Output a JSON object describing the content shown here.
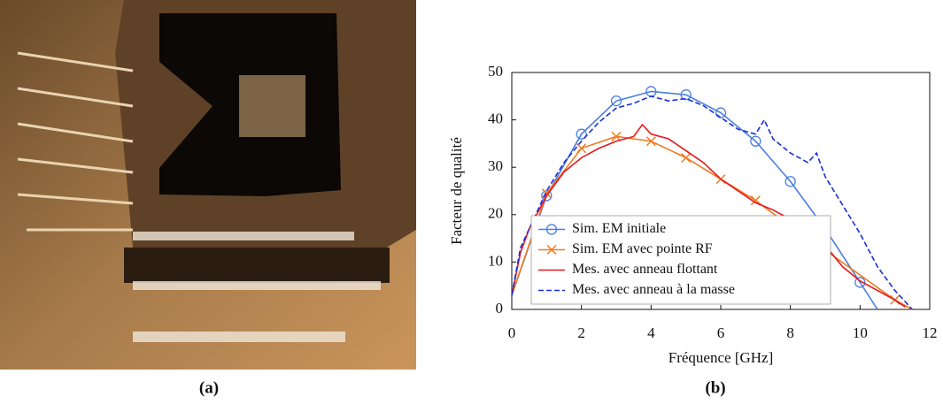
{
  "captions": [
    "(a)",
    "(b)"
  ],
  "chart_data": {
    "type": "line",
    "xlabel": "Fréquence [GHz]",
    "ylabel": "Facteur de qualité",
    "xlim": [
      0,
      12
    ],
    "xticks": [
      0,
      2,
      4,
      6,
      8,
      10,
      12
    ],
    "ylim": [
      0,
      50
    ],
    "yticks": [
      0,
      10,
      20,
      30,
      40,
      50
    ],
    "legend": "lower left",
    "series": [
      {
        "name": "Sim. EM initiale",
        "color": "#4a7fe0",
        "marker": "circle",
        "x": [
          0,
          1,
          2,
          3,
          4,
          5,
          6,
          7,
          8,
          9,
          10,
          10.5
        ],
        "values": [
          3,
          24,
          37,
          44,
          46,
          45.3,
          41.5,
          35.5,
          27,
          17,
          5.7,
          0
        ]
      },
      {
        "name": "Sim. EM avec pointe RF",
        "color": "#f07a20",
        "marker": "x",
        "x": [
          0,
          1,
          2,
          3,
          4,
          5,
          6,
          7,
          8,
          9,
          11,
          11.5
        ],
        "values": [
          3,
          24.5,
          34,
          36.5,
          35.5,
          32,
          27.5,
          23,
          17.5,
          12.5,
          2,
          0
        ]
      },
      {
        "name": "Mes. avec anneau flottant",
        "color": "#e8161b",
        "x": [
          0,
          0.25,
          0.5,
          1,
          1.5,
          2,
          2.5,
          3,
          3.5,
          3.75,
          4,
          4.5,
          5,
          5.5,
          6,
          6.5,
          7,
          7.5,
          8,
          8.5,
          9,
          9.5,
          10,
          10.5,
          11,
          11.3
        ],
        "values": [
          3,
          12,
          17,
          24,
          29,
          32,
          34,
          35.5,
          36.5,
          39,
          37,
          36,
          33.5,
          31,
          27.5,
          25,
          22.5,
          21,
          19,
          17,
          13.5,
          9,
          6,
          4,
          2,
          0.5
        ]
      },
      {
        "name": "Mes. avec anneau à la masse",
        "color": "#1a2fd8",
        "dash": true,
        "x": [
          0,
          0.25,
          0.5,
          1,
          1.5,
          2,
          2.5,
          3,
          3.5,
          4,
          4.5,
          5,
          5.5,
          6,
          6.5,
          7,
          7.25,
          7.5,
          8,
          8.5,
          8.75,
          9,
          9.5,
          10,
          10.5,
          11,
          11.5
        ],
        "values": [
          3,
          13,
          17,
          25,
          31,
          35.5,
          39.5,
          42.5,
          43.5,
          45,
          44,
          44.5,
          43,
          40.5,
          38,
          37,
          40,
          36,
          33,
          31,
          33,
          28,
          22,
          16,
          9,
          4,
          0
        ]
      }
    ]
  }
}
